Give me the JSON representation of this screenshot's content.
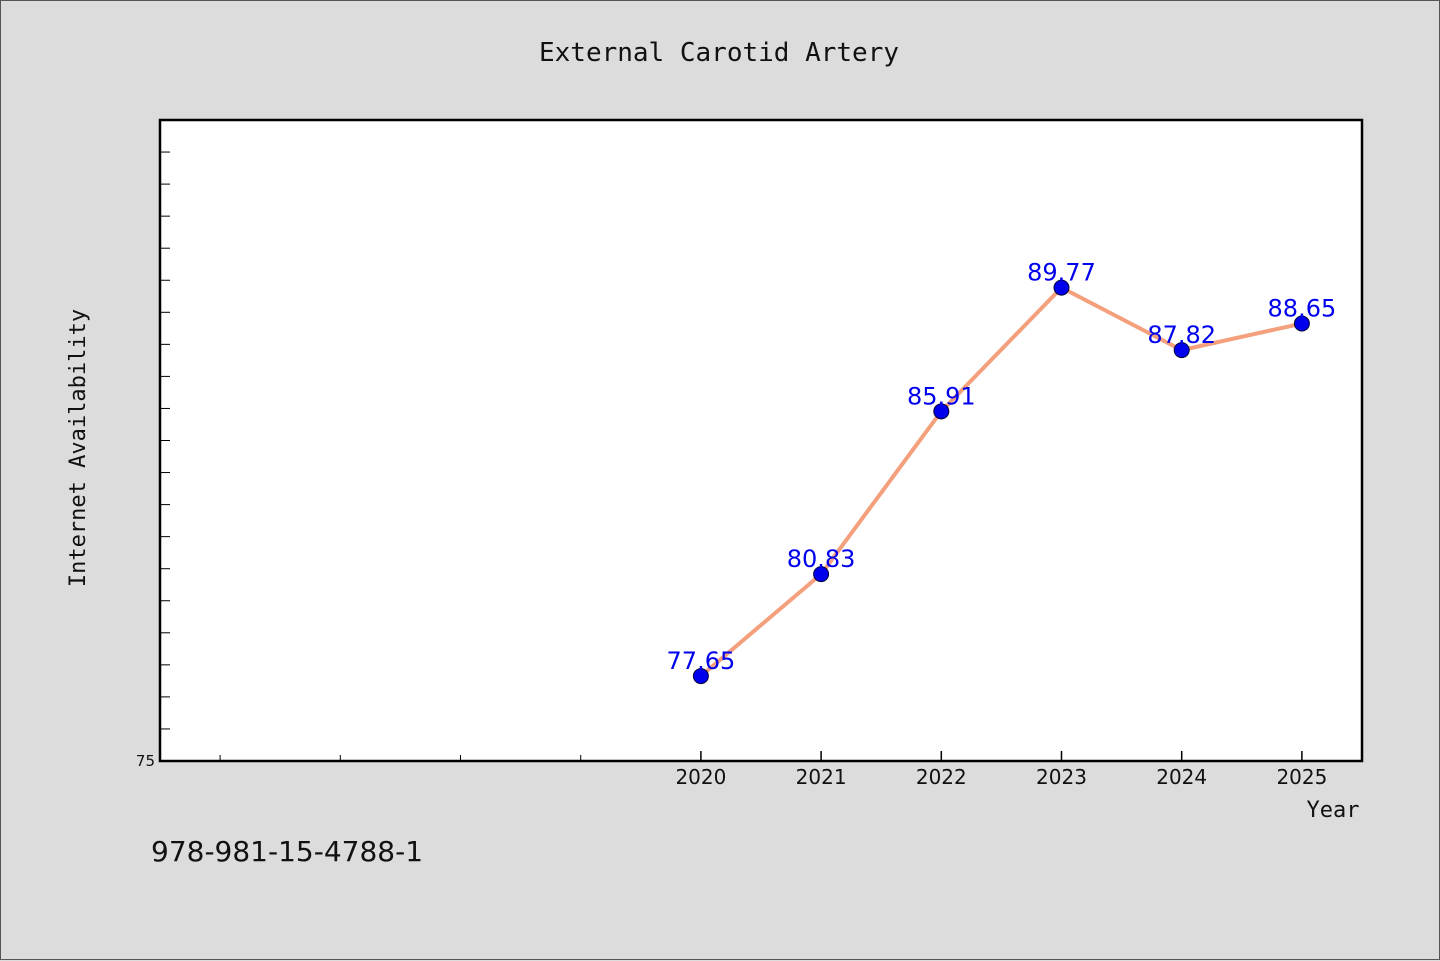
{
  "chart_data": {
    "type": "line",
    "title": "External Carotid Artery",
    "xlabel": "Year",
    "ylabel": "Internet Availability",
    "x": [
      2020,
      2021,
      2022,
      2023,
      2024,
      2025
    ],
    "xlim": [
      2015.5,
      2025.5
    ],
    "ylim": [
      75,
      95
    ],
    "y_ticks_labeled": [
      75
    ],
    "y_minor_step": 1,
    "x_minor_ticks": [
      2016,
      2017,
      2018,
      2019
    ],
    "grid": false,
    "series": [
      {
        "values": [
          77.65,
          80.83,
          85.91,
          89.77,
          87.82,
          88.65
        ],
        "line_color": "#f4a07c",
        "marker_color": "#0000ee",
        "label_color": "#0000ee"
      }
    ]
  },
  "footer": {
    "isbn": "978-981-15-4788-1"
  },
  "colors": {
    "background": "#dcdcdc",
    "plot_area": "#ffffff",
    "frame": "#000000"
  }
}
